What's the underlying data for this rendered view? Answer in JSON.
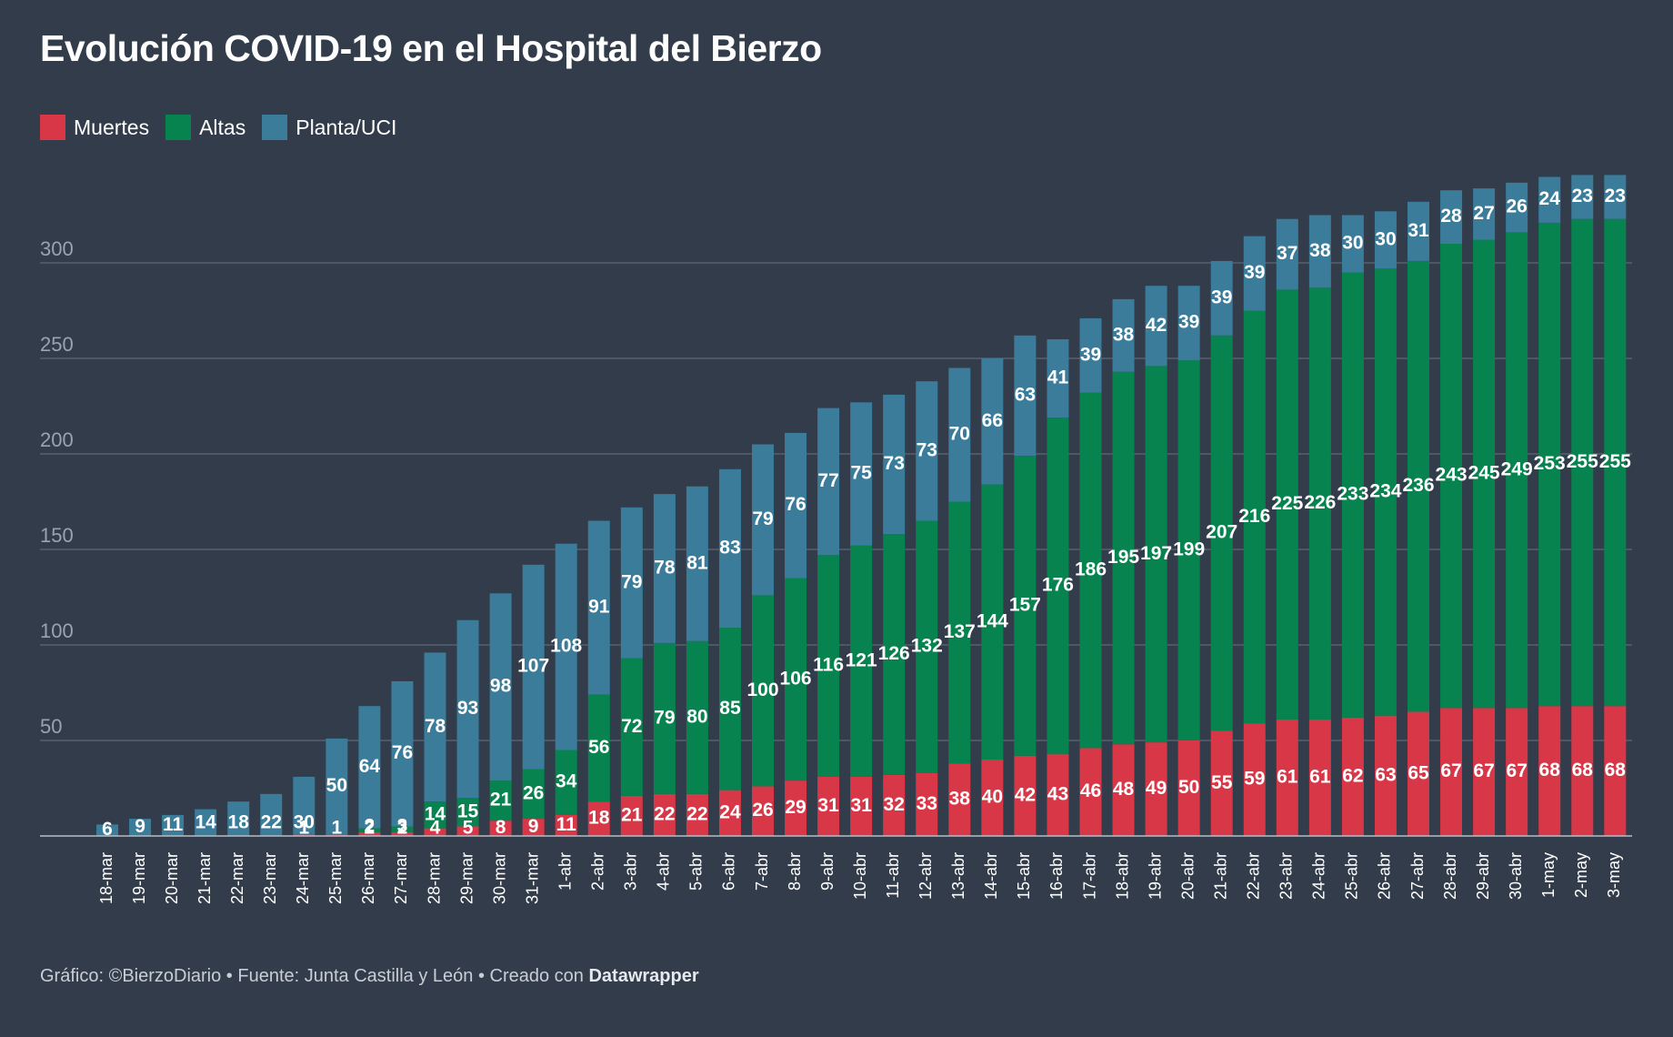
{
  "title": "Evolución COVID-19 en el Hospital del Bierzo",
  "legend": [
    {
      "label": "Muertes",
      "color": "#d73747"
    },
    {
      "label": "Altas",
      "color": "#06834f"
    },
    {
      "label": "Planta/UCI",
      "color": "#3a7c99"
    }
  ],
  "footer": {
    "text": "Gráfico: ©BierzoDiario • Fuente: Junta Castilla y León • Creado con ",
    "brand": "Datawrapper"
  },
  "chart_data": {
    "type": "bar",
    "stacked": true,
    "ylim": [
      0,
      350
    ],
    "yticks": [
      50,
      100,
      150,
      200,
      250,
      300
    ],
    "grid": true,
    "legend_position": "top-left",
    "categories": [
      "18-mar",
      "19-mar",
      "20-mar",
      "21-mar",
      "22-mar",
      "23-mar",
      "24-mar",
      "25-mar",
      "26-mar",
      "27-mar",
      "28-mar",
      "29-mar",
      "30-mar",
      "31-mar",
      "1-abr",
      "2-abr",
      "3-abr",
      "4-abr",
      "5-abr",
      "6-abr",
      "7-abr",
      "8-abr",
      "9-abr",
      "10-abr",
      "11-abr",
      "12-abr",
      "13-abr",
      "14-abr",
      "15-abr",
      "16-abr",
      "17-abr",
      "18-abr",
      "19-abr",
      "20-abr",
      "21-abr",
      "22-abr",
      "23-abr",
      "24-abr",
      "25-abr",
      "26-abr",
      "27-abr",
      "28-abr",
      "29-abr",
      "30-abr",
      "1-may",
      "2-may",
      "3-may"
    ],
    "series": [
      {
        "name": "Muertes",
        "color": "#d73747",
        "values": [
          0,
          0,
          0,
          0,
          0,
          0,
          1,
          1,
          2,
          2,
          4,
          5,
          8,
          9,
          11,
          18,
          21,
          22,
          22,
          24,
          26,
          29,
          31,
          31,
          32,
          33,
          38,
          40,
          42,
          43,
          46,
          48,
          49,
          50,
          55,
          59,
          61,
          61,
          62,
          63,
          65,
          67,
          67,
          67,
          68,
          68,
          68
        ]
      },
      {
        "name": "Altas",
        "color": "#06834f",
        "values": [
          0,
          0,
          0,
          0,
          0,
          0,
          0,
          0,
          2,
          3,
          14,
          15,
          21,
          26,
          34,
          56,
          72,
          79,
          80,
          85,
          100,
          106,
          116,
          121,
          126,
          132,
          137,
          144,
          157,
          176,
          186,
          195,
          197,
          199,
          207,
          216,
          225,
          226,
          233,
          234,
          236,
          243,
          245,
          249,
          253,
          255,
          255
        ]
      },
      {
        "name": "Planta/UCI",
        "color": "#3a7c99",
        "values": [
          6,
          9,
          11,
          14,
          18,
          22,
          30,
          50,
          64,
          76,
          78,
          93,
          98,
          107,
          108,
          91,
          79,
          78,
          81,
          83,
          79,
          76,
          77,
          75,
          73,
          73,
          70,
          66,
          63,
          41,
          39,
          38,
          42,
          39,
          39,
          39,
          37,
          38,
          30,
          30,
          31,
          28,
          27,
          26,
          24,
          23,
          23
        ]
      }
    ]
  }
}
